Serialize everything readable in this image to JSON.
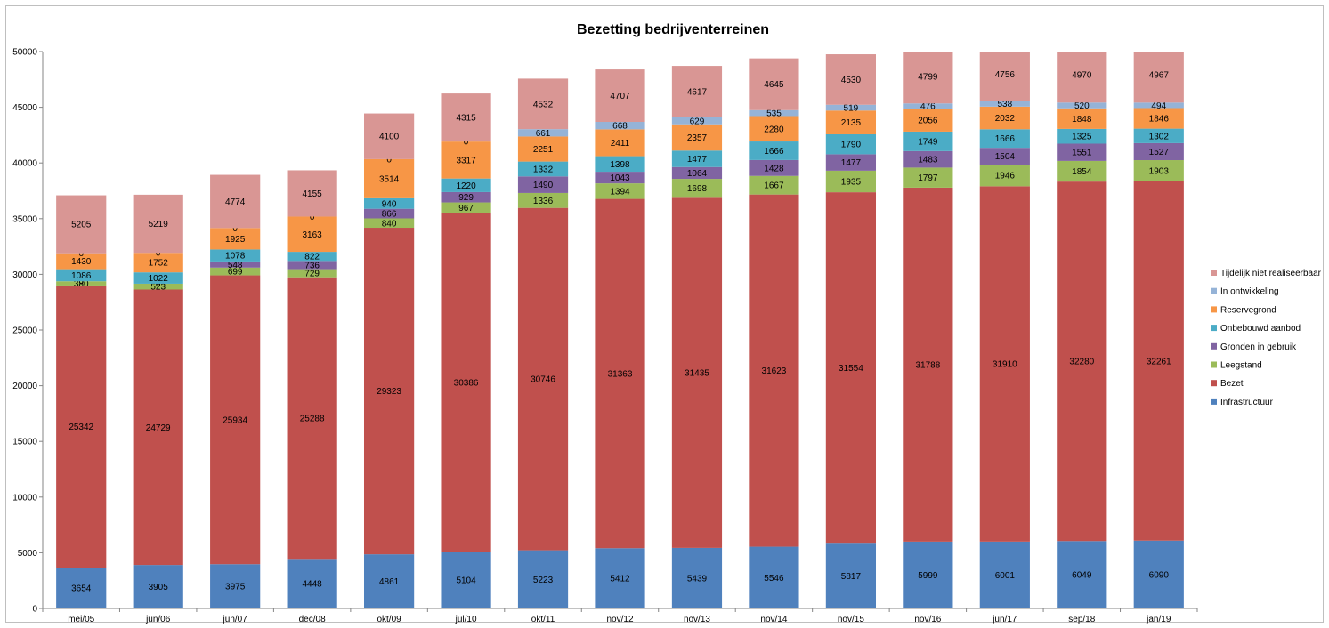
{
  "chart_data": {
    "type": "bar",
    "stacked": true,
    "title": "Bezetting bedrijventerreinen",
    "xlabel": "",
    "ylabel": "",
    "ylim": [
      0,
      50000
    ],
    "y_ticks": [
      "0",
      "5000",
      "10000",
      "15000",
      "20000",
      "25000",
      "30000",
      "35000",
      "40000",
      "45000",
      "50000"
    ],
    "grid": false,
    "legend_position": "right",
    "categories": [
      "mei/05",
      "jun/06",
      "jun/07",
      "dec/08",
      "okt/09",
      "jul/10",
      "okt/11",
      "nov/12",
      "nov/13",
      "nov/14",
      "nov/15",
      "nov/16",
      "jun/17",
      "sep/18",
      "jan/19"
    ],
    "series": [
      {
        "name": "Infrastructuur",
        "color": "#4f81bd",
        "values": [
          3654,
          3905,
          3975,
          4448,
          4861,
          5104,
          5223,
          5412,
          5439,
          5546,
          5817,
          5999,
          6001,
          6049,
          6090
        ]
      },
      {
        "name": "Bezet",
        "color": "#c0504d",
        "values": [
          25342,
          24729,
          25934,
          25288,
          29323,
          30386,
          30746,
          31363,
          31435,
          31623,
          31554,
          31788,
          31910,
          32280,
          32261
        ]
      },
      {
        "name": "Leegstand",
        "color": "#9bbb59",
        "values": [
          380,
          523,
          699,
          729,
          840,
          967,
          1336,
          1394,
          1698,
          1667,
          1935,
          1797,
          1946,
          1854,
          1903
        ]
      },
      {
        "name": "Gronden in gebruik",
        "color": "#8064a2",
        "values": [
          0,
          0,
          548,
          736,
          866,
          929,
          1490,
          1043,
          1064,
          1428,
          1477,
          1483,
          1504,
          1551,
          1527
        ]
      },
      {
        "name": "Onbebouwd aanbod",
        "color": "#4bacc6",
        "values": [
          1086,
          1022,
          1078,
          822,
          940,
          1220,
          1332,
          1398,
          1477,
          1666,
          1790,
          1749,
          1666,
          1325,
          1302
        ]
      },
      {
        "name": "Reservegrond",
        "color": "#f79646",
        "values": [
          1430,
          1752,
          1925,
          3163,
          3514,
          3317,
          2251,
          2411,
          2357,
          2280,
          2135,
          2056,
          2032,
          1848,
          1846
        ]
      },
      {
        "name": "In ontwikkeling",
        "color": "#95b3d7",
        "values": [
          0,
          0,
          0,
          0,
          0,
          0,
          661,
          668,
          629,
          535,
          519,
          476,
          538,
          520,
          494
        ]
      },
      {
        "name": "Tijdelijk niet realiseerbaar",
        "color": "#d99694",
        "values": [
          5205,
          5219,
          4774,
          4155,
          4100,
          4315,
          4532,
          4707,
          4617,
          4645,
          4530,
          4799,
          4756,
          4970,
          4967
        ]
      }
    ]
  }
}
